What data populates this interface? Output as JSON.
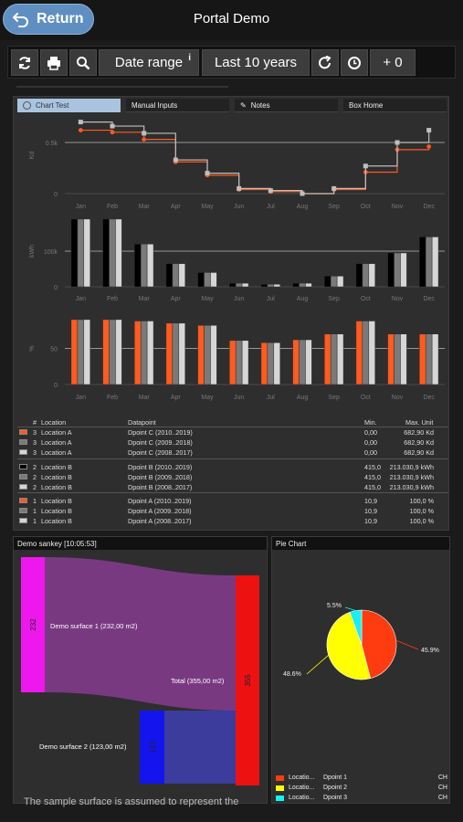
{
  "header": {
    "return_label": "Return",
    "title": "Portal Demo"
  },
  "toolbar": {
    "date_range_label": "Date range",
    "info": "i",
    "period_label": "Last 10 years",
    "offset_label": "+ 0"
  },
  "tabs": [
    {
      "label": "Chart Test",
      "active": true
    },
    {
      "label": "Manual Inputs",
      "active": false
    },
    {
      "label": "Notes",
      "active": false
    },
    {
      "label": "Box Home",
      "active": false
    }
  ],
  "chart_data": [
    {
      "type": "line",
      "categories": [
        "Jan",
        "Feb",
        "Mar",
        "Apr",
        "May",
        "Jun",
        "Jul",
        "Aug",
        "Sep",
        "Oct",
        "Nov",
        "Dec"
      ],
      "ylabel": "Kd",
      "yticks": [
        "0",
        "0.5k"
      ],
      "reference_line": 500,
      "series": [
        {
          "color": "#ff5a1f",
          "step": true,
          "values": [
            620,
            600,
            530,
            310,
            180,
            40,
            20,
            0,
            40,
            210,
            430,
            460
          ]
        },
        {
          "color": "#bfbfbf",
          "step": true,
          "values": [
            700,
            660,
            590,
            330,
            200,
            50,
            30,
            0,
            50,
            270,
            500,
            620
          ]
        }
      ]
    },
    {
      "type": "bar",
      "categories": [
        "Jan",
        "Feb",
        "Mar",
        "Apr",
        "May",
        "Jun",
        "Jul",
        "Aug",
        "Sep",
        "Oct",
        "Nov",
        "Dec"
      ],
      "ylabel": "kWh",
      "yticks": [
        "0",
        "100k"
      ],
      "reference_line": 100000,
      "series": [
        {
          "color": "#000000",
          "values": [
            190000,
            190000,
            120000,
            65000,
            40000,
            10000,
            7000,
            10000,
            30000,
            65000,
            95000,
            140000
          ]
        },
        {
          "color": "#7a7a7a",
          "values": [
            190000,
            190000,
            120000,
            65000,
            40000,
            10000,
            7000,
            10000,
            30000,
            65000,
            95000,
            140000
          ]
        },
        {
          "color": "#d6d6d6",
          "values": [
            190000,
            190000,
            120000,
            65000,
            40000,
            10000,
            7000,
            10000,
            30000,
            65000,
            95000,
            140000
          ]
        }
      ]
    },
    {
      "type": "bar",
      "categories": [
        "Jan",
        "Feb",
        "Mar",
        "Apr",
        "May",
        "Jun",
        "Jul",
        "Aug",
        "Sep",
        "Oct",
        "Nov",
        "Dec"
      ],
      "ylabel": "%",
      "yticks": [
        "0",
        "50"
      ],
      "reference_line": 50,
      "series": [
        {
          "color": "#ff5a1f",
          "values": [
            90,
            90,
            88,
            85,
            82,
            61,
            58,
            62,
            70,
            88,
            70,
            70
          ]
        },
        {
          "color": "#7a7a7a",
          "values": [
            90,
            90,
            88,
            85,
            82,
            61,
            58,
            62,
            70,
            88,
            70,
            70
          ]
        },
        {
          "color": "#d6d6d6",
          "values": [
            90,
            90,
            88,
            85,
            82,
            61,
            58,
            62,
            70,
            88,
            70,
            70
          ]
        }
      ]
    }
  ],
  "legend_table": {
    "headers": {
      "num": "#",
      "location": "Location",
      "datapoint": "Datapoint",
      "min": "Min.",
      "max_unit": "Max. Unit"
    },
    "rows": [
      {
        "color": "#ff5a1f",
        "num": "3",
        "location": "Location A",
        "datapoint": "Dpoint C (2010..2019)",
        "min": "0,00",
        "max": "682,90 Kd"
      },
      {
        "color": "#7a7a7a",
        "num": "3",
        "location": "Location A",
        "datapoint": "Dpoint C (2009..2018)",
        "min": "0,00",
        "max": "682,90 Kd"
      },
      {
        "color": "#d6d6d6",
        "num": "3",
        "location": "Location A",
        "datapoint": "Dpoint C (2008..2017)",
        "min": "0,00",
        "max": "682,90 Kd"
      },
      {
        "color": "#000000",
        "num": "2",
        "location": "Location B",
        "datapoint": "Dpoint B (2010..2019)",
        "min": "415,0",
        "max": "213.030,9 kWh"
      },
      {
        "color": "#7a7a7a",
        "num": "2",
        "location": "Location B",
        "datapoint": "Dpoint B (2009..2018)",
        "min": "415,0",
        "max": "213.030,9 kWh"
      },
      {
        "color": "#d6d6d6",
        "num": "2",
        "location": "Location B",
        "datapoint": "Dpoint B (2008..2017)",
        "min": "415,0",
        "max": "213.030,9 kWh"
      },
      {
        "color": "#ff5a1f",
        "num": "1",
        "location": "Location B",
        "datapoint": "Dpoint A (2010..2019)",
        "min": "10,9",
        "max": "100,0 %"
      },
      {
        "color": "#7a7a7a",
        "num": "1",
        "location": "Location B",
        "datapoint": "Dpoint A (2009..2018)",
        "min": "10,9",
        "max": "100,0 %"
      },
      {
        "color": "#d6d6d6",
        "num": "1",
        "location": "Location B",
        "datapoint": "Dpoint A (2008..2017)",
        "min": "10,9",
        "max": "100,0 %"
      }
    ]
  },
  "sankey": {
    "title": "Demo sankey [10:05:53]",
    "nodes": [
      {
        "value_label": "232",
        "label": "Demo surface 1 (232,00 m2)",
        "color": "#ee18ee"
      },
      {
        "value_label": "123",
        "label": "Demo surface 2 (123,00 m2)",
        "color": "#1414ee"
      },
      {
        "value_label": "355",
        "label": "Total (355,00 m2)",
        "color": "#ee1111"
      }
    ],
    "footer_text": "The sample surface is assumed to represent the"
  },
  "pie": {
    "title": "Pie Chart",
    "slices": [
      {
        "value": 45.9,
        "label": "45.9%",
        "color": "#ff3c10"
      },
      {
        "value": 48.6,
        "label": "48.6%",
        "color": "#ffff00"
      },
      {
        "value": 5.5,
        "label": "5.5%",
        "color": "#18f0f0"
      }
    ],
    "legend": [
      {
        "color": "#ff3c10",
        "location": "Locatio...",
        "datapoint": "Dpoint 1",
        "unit": "CH"
      },
      {
        "color": "#ffff00",
        "location": "Locatio...",
        "datapoint": "Dpoint 2",
        "unit": "CH"
      },
      {
        "color": "#18f0f0",
        "location": "Locatio...",
        "datapoint": "Dpoint 3",
        "unit": "CH"
      }
    ]
  }
}
